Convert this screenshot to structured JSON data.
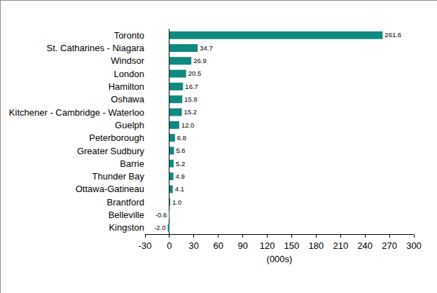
{
  "chart_data": {
    "type": "bar",
    "orientation": "horizontal",
    "categories": [
      "Toronto",
      "St. Catharines - Niagara",
      "Windsor",
      "London",
      "Hamilton",
      "Oshawa",
      "Kitchener - Cambridge - Waterloo",
      "Guelph",
      "Peterborough",
      "Greater Sudbury",
      "Barrie",
      "Thunder Bay",
      "Ottawa-Gatineau",
      "Brantford",
      "Belleville",
      "Kingston"
    ],
    "values": [
      261.6,
      34.7,
      26.9,
      20.5,
      16.7,
      15.8,
      15.2,
      12.0,
      6.8,
      5.6,
      5.2,
      4.9,
      4.1,
      1.0,
      -0.6,
      -2.0
    ],
    "value_labels": [
      "261.6",
      "34.7",
      "26.9",
      "20.5",
      "16.7",
      "15.8",
      "15.2",
      "12.0",
      "6.8",
      "5.6",
      "5.2",
      "4.9",
      "4.1",
      "1.0",
      "-0.6",
      "-2.0"
    ],
    "color": "#0f8a80",
    "x_label": "(000s)",
    "xlim": [
      -30,
      300
    ],
    "xticks": [
      -30,
      0,
      30,
      60,
      90,
      120,
      150,
      180,
      210,
      240,
      270,
      300
    ],
    "grid": false,
    "data_labels": true
  }
}
